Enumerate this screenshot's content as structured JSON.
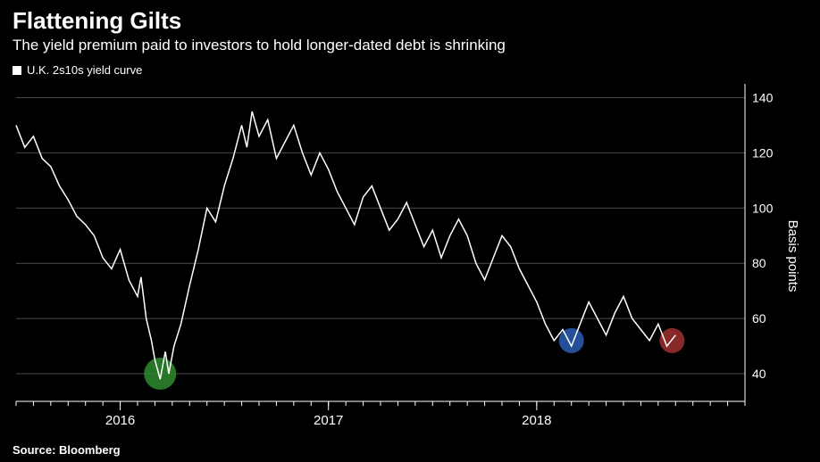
{
  "header": {
    "title": "Flattening Gilts",
    "subtitle": "The yield premium paid to investors to hold longer-dated debt is shrinking",
    "title_fontsize": 26,
    "subtitle_fontsize": 17
  },
  "legend": {
    "series_name": "U.K. 2s10s yield curve",
    "marker_color": "#ffffff",
    "fontsize": 13
  },
  "source": {
    "text": "Source: Bloomberg",
    "fontsize": 13
  },
  "chart": {
    "type": "line",
    "background_color": "#000000",
    "grid_color": "#4a4a4a",
    "axis_color": "#ffffff",
    "line_color": "#ffffff",
    "line_width": 1.5,
    "y_axis": {
      "label": "Basis points",
      "label_fontsize": 15,
      "position": "right",
      "ylim": [
        30,
        145
      ],
      "ticks": [
        40,
        60,
        80,
        100,
        120,
        140
      ],
      "tick_fontsize": 14
    },
    "x_axis": {
      "xlim": [
        0,
        42
      ],
      "year_ticks": [
        {
          "x": 6,
          "label": "2016"
        },
        {
          "x": 18,
          "label": "2017"
        },
        {
          "x": 30,
          "label": "2018"
        }
      ],
      "minor_tick_step": 1,
      "tick_fontsize": 15
    },
    "series": [
      {
        "x": 0.0,
        "y": 130
      },
      {
        "x": 0.5,
        "y": 122
      },
      {
        "x": 1.0,
        "y": 126
      },
      {
        "x": 1.5,
        "y": 118
      },
      {
        "x": 2.0,
        "y": 115
      },
      {
        "x": 2.5,
        "y": 108
      },
      {
        "x": 3.0,
        "y": 103
      },
      {
        "x": 3.5,
        "y": 97
      },
      {
        "x": 4.0,
        "y": 94
      },
      {
        "x": 4.5,
        "y": 90
      },
      {
        "x": 5.0,
        "y": 82
      },
      {
        "x": 5.5,
        "y": 78
      },
      {
        "x": 6.0,
        "y": 85
      },
      {
        "x": 6.5,
        "y": 74
      },
      {
        "x": 7.0,
        "y": 68
      },
      {
        "x": 7.2,
        "y": 75
      },
      {
        "x": 7.5,
        "y": 60
      },
      {
        "x": 7.8,
        "y": 52
      },
      {
        "x": 8.0,
        "y": 45
      },
      {
        "x": 8.3,
        "y": 38
      },
      {
        "x": 8.6,
        "y": 48
      },
      {
        "x": 8.8,
        "y": 40
      },
      {
        "x": 9.1,
        "y": 50
      },
      {
        "x": 9.5,
        "y": 58
      },
      {
        "x": 10.0,
        "y": 72
      },
      {
        "x": 10.5,
        "y": 85
      },
      {
        "x": 11.0,
        "y": 100
      },
      {
        "x": 11.5,
        "y": 95
      },
      {
        "x": 12.0,
        "y": 108
      },
      {
        "x": 12.5,
        "y": 118
      },
      {
        "x": 13.0,
        "y": 130
      },
      {
        "x": 13.3,
        "y": 122
      },
      {
        "x": 13.6,
        "y": 135
      },
      {
        "x": 14.0,
        "y": 126
      },
      {
        "x": 14.5,
        "y": 132
      },
      {
        "x": 15.0,
        "y": 118
      },
      {
        "x": 15.5,
        "y": 124
      },
      {
        "x": 16.0,
        "y": 130
      },
      {
        "x": 16.5,
        "y": 120
      },
      {
        "x": 17.0,
        "y": 112
      },
      {
        "x": 17.5,
        "y": 120
      },
      {
        "x": 18.0,
        "y": 114
      },
      {
        "x": 18.5,
        "y": 106
      },
      {
        "x": 19.0,
        "y": 100
      },
      {
        "x": 19.5,
        "y": 94
      },
      {
        "x": 20.0,
        "y": 104
      },
      {
        "x": 20.5,
        "y": 108
      },
      {
        "x": 21.0,
        "y": 100
      },
      {
        "x": 21.5,
        "y": 92
      },
      {
        "x": 22.0,
        "y": 96
      },
      {
        "x": 22.5,
        "y": 102
      },
      {
        "x": 23.0,
        "y": 94
      },
      {
        "x": 23.5,
        "y": 86
      },
      {
        "x": 24.0,
        "y": 92
      },
      {
        "x": 24.5,
        "y": 82
      },
      {
        "x": 25.0,
        "y": 90
      },
      {
        "x": 25.5,
        "y": 96
      },
      {
        "x": 26.0,
        "y": 90
      },
      {
        "x": 26.5,
        "y": 80
      },
      {
        "x": 27.0,
        "y": 74
      },
      {
        "x": 27.5,
        "y": 82
      },
      {
        "x": 28.0,
        "y": 90
      },
      {
        "x": 28.5,
        "y": 86
      },
      {
        "x": 29.0,
        "y": 78
      },
      {
        "x": 29.5,
        "y": 72
      },
      {
        "x": 30.0,
        "y": 66
      },
      {
        "x": 30.5,
        "y": 58
      },
      {
        "x": 31.0,
        "y": 52
      },
      {
        "x": 31.5,
        "y": 56
      },
      {
        "x": 32.0,
        "y": 50
      },
      {
        "x": 32.5,
        "y": 58
      },
      {
        "x": 33.0,
        "y": 66
      },
      {
        "x": 33.5,
        "y": 60
      },
      {
        "x": 34.0,
        "y": 54
      },
      {
        "x": 34.5,
        "y": 62
      },
      {
        "x": 35.0,
        "y": 68
      },
      {
        "x": 35.5,
        "y": 60
      },
      {
        "x": 36.0,
        "y": 56
      },
      {
        "x": 36.5,
        "y": 52
      },
      {
        "x": 37.0,
        "y": 58
      },
      {
        "x": 37.5,
        "y": 50
      },
      {
        "x": 38.0,
        "y": 54
      }
    ],
    "markers": [
      {
        "x": 8.3,
        "y": 40,
        "r": 18,
        "fill": "#2e8b2e",
        "opacity": 0.85
      },
      {
        "x": 32.0,
        "y": 52,
        "r": 14,
        "fill": "#2a5db0",
        "opacity": 0.85
      },
      {
        "x": 37.8,
        "y": 52,
        "r": 14,
        "fill": "#a03030",
        "opacity": 0.85
      }
    ]
  }
}
